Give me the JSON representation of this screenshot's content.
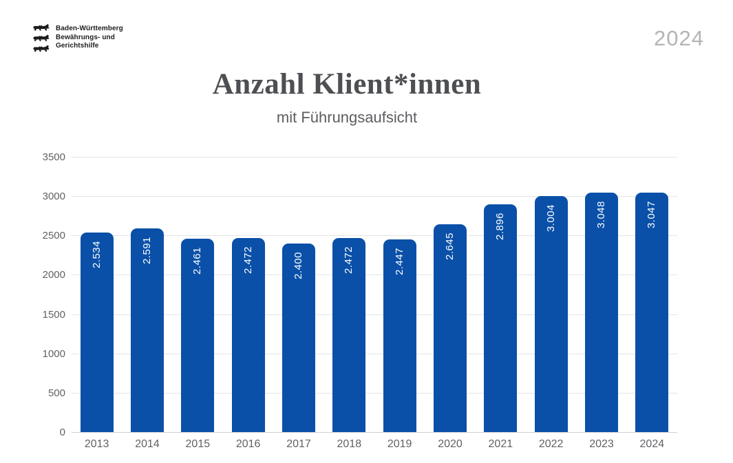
{
  "header": {
    "logo": {
      "icon": "three-lions-coat-of-arms",
      "lines": [
        "Baden-Württemberg",
        "Bewährungs- und",
        "Gerichtshilfe"
      ]
    },
    "year": "2024"
  },
  "chart_data": {
    "type": "bar",
    "title": "Anzahl Klient*innen",
    "subtitle": "mit Führungsaufsicht",
    "categories": [
      "2013",
      "2014",
      "2015",
      "2016",
      "2017",
      "2018",
      "2019",
      "2020",
      "2021",
      "2022",
      "2023",
      "2024"
    ],
    "values": [
      2534,
      2591,
      2461,
      2472,
      2400,
      2472,
      2447,
      2645,
      2896,
      3004,
      3048,
      3047
    ],
    "value_labels": [
      "2.534",
      "2.591",
      "2.461",
      "2.472",
      "2.400",
      "2.472",
      "2.447",
      "2.645",
      "2.896",
      "3.004",
      "3.048",
      "3.047"
    ],
    "xlabel": "",
    "ylabel": "",
    "ylim": [
      0,
      3500
    ],
    "yticks": [
      0,
      500,
      1000,
      1500,
      2000,
      2500,
      3000,
      3500
    ],
    "grid": true,
    "legend": "none",
    "value_label_rotation": -90,
    "bar_color": "#0a50a8",
    "value_label_color": "#ffffff"
  },
  "colors": {
    "bar_blue": "#0a50a8",
    "title_gray": "#4d4f52",
    "subtitle_gray": "#5b5d60",
    "year_gray": "#b2b4b6",
    "axis_label_gray": "#5f6164",
    "gridline_gray": "#e3e4e6"
  }
}
